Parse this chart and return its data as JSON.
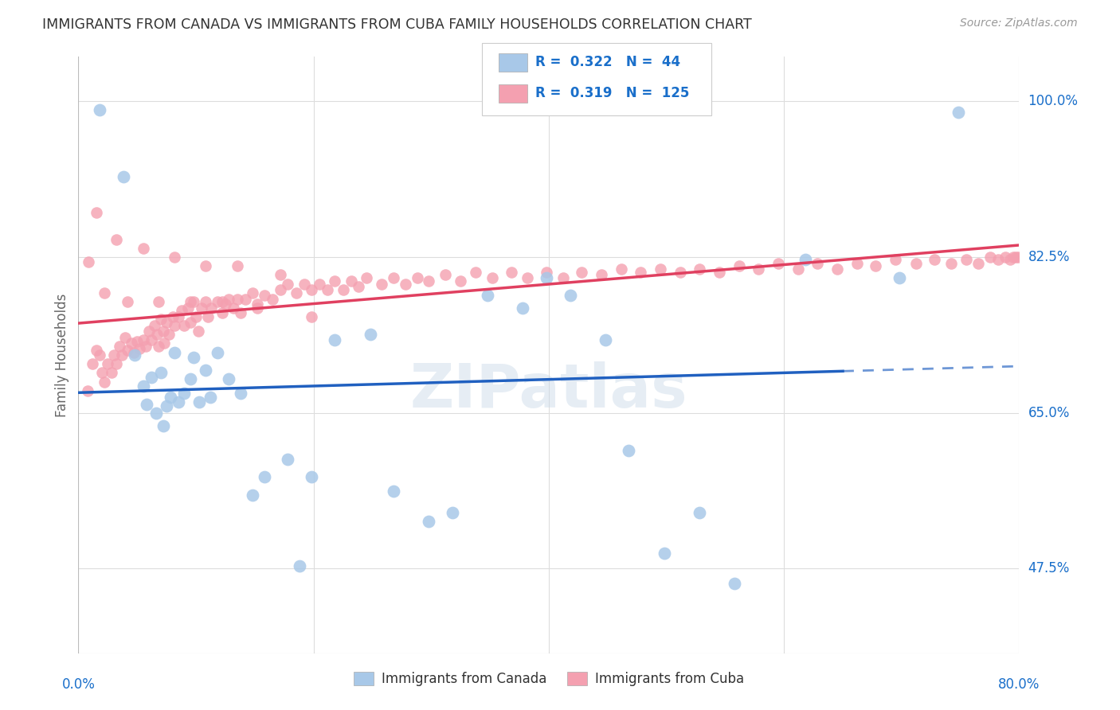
{
  "title": "IMMIGRANTS FROM CANADA VS IMMIGRANTS FROM CUBA FAMILY HOUSEHOLDS CORRELATION CHART",
  "source": "Source: ZipAtlas.com",
  "ylabel": "Family Households",
  "ytick_values": [
    1.0,
    0.825,
    0.65,
    0.475
  ],
  "ytick_labels": [
    "100.0%",
    "82.5%",
    "65.0%",
    "47.5%"
  ],
  "xtick_labels": [
    "0.0%",
    "80.0%"
  ],
  "xlim": [
    0.0,
    0.8
  ],
  "ylim": [
    0.38,
    1.05
  ],
  "canada_N": 44,
  "cuba_N": 125,
  "canada_color": "#a8c8e8",
  "cuba_color": "#f4a0b0",
  "canada_line_color": "#2060c0",
  "cuba_line_color": "#e04060",
  "background_color": "#ffffff",
  "grid_color": "#dddddd",
  "title_color": "#333333",
  "axis_label_color": "#1a6fca",
  "watermark_text": "ZIPatlas",
  "watermark_color": "#c8d8e8",
  "watermark_alpha": 0.45,
  "legend_R_canada": "0.322",
  "legend_N_canada": "44",
  "legend_R_cuba": "0.319",
  "legend_N_cuba": "125",
  "canada_x": [
    0.018,
    0.038,
    0.048,
    0.055,
    0.058,
    0.062,
    0.066,
    0.07,
    0.072,
    0.075,
    0.078,
    0.082,
    0.085,
    0.09,
    0.095,
    0.098,
    0.103,
    0.108,
    0.112,
    0.118,
    0.128,
    0.138,
    0.148,
    0.158,
    0.178,
    0.188,
    0.198,
    0.218,
    0.248,
    0.268,
    0.298,
    0.318,
    0.348,
    0.378,
    0.398,
    0.418,
    0.448,
    0.468,
    0.498,
    0.528,
    0.558,
    0.618,
    0.698,
    0.748
  ],
  "canada_y": [
    0.99,
    0.915,
    0.715,
    0.68,
    0.66,
    0.69,
    0.65,
    0.695,
    0.635,
    0.658,
    0.668,
    0.718,
    0.662,
    0.672,
    0.688,
    0.712,
    0.662,
    0.698,
    0.668,
    0.718,
    0.688,
    0.672,
    0.558,
    0.578,
    0.598,
    0.478,
    0.578,
    0.732,
    0.738,
    0.562,
    0.528,
    0.538,
    0.782,
    0.768,
    0.802,
    0.782,
    0.732,
    0.608,
    0.492,
    0.538,
    0.458,
    0.822,
    0.802,
    0.988
  ],
  "cuba_x": [
    0.008,
    0.012,
    0.015,
    0.018,
    0.02,
    0.022,
    0.025,
    0.028,
    0.03,
    0.032,
    0.035,
    0.037,
    0.04,
    0.042,
    0.045,
    0.047,
    0.05,
    0.052,
    0.055,
    0.057,
    0.06,
    0.062,
    0.065,
    0.067,
    0.068,
    0.07,
    0.072,
    0.073,
    0.075,
    0.077,
    0.08,
    0.082,
    0.085,
    0.088,
    0.09,
    0.093,
    0.095,
    0.098,
    0.1,
    0.102,
    0.105,
    0.108,
    0.11,
    0.113,
    0.118,
    0.122,
    0.125,
    0.128,
    0.132,
    0.135,
    0.138,
    0.142,
    0.148,
    0.152,
    0.158,
    0.165,
    0.172,
    0.178,
    0.185,
    0.192,
    0.198,
    0.205,
    0.212,
    0.218,
    0.225,
    0.232,
    0.238,
    0.245,
    0.258,
    0.268,
    0.278,
    0.288,
    0.298,
    0.312,
    0.325,
    0.338,
    0.352,
    0.368,
    0.382,
    0.398,
    0.412,
    0.428,
    0.445,
    0.462,
    0.478,
    0.495,
    0.512,
    0.528,
    0.545,
    0.562,
    0.578,
    0.595,
    0.612,
    0.628,
    0.645,
    0.662,
    0.678,
    0.695,
    0.712,
    0.728,
    0.742,
    0.755,
    0.765,
    0.775,
    0.782,
    0.788,
    0.792,
    0.795,
    0.797,
    0.799,
    0.0085,
    0.015,
    0.022,
    0.032,
    0.042,
    0.055,
    0.068,
    0.082,
    0.095,
    0.108,
    0.122,
    0.135,
    0.152,
    0.172,
    0.198
  ],
  "cuba_y": [
    0.675,
    0.705,
    0.72,
    0.715,
    0.695,
    0.685,
    0.705,
    0.695,
    0.715,
    0.705,
    0.725,
    0.715,
    0.735,
    0.72,
    0.728,
    0.718,
    0.73,
    0.722,
    0.732,
    0.725,
    0.742,
    0.732,
    0.748,
    0.738,
    0.725,
    0.755,
    0.742,
    0.728,
    0.752,
    0.738,
    0.758,
    0.748,
    0.758,
    0.765,
    0.748,
    0.768,
    0.752,
    0.775,
    0.758,
    0.742,
    0.768,
    0.775,
    0.758,
    0.768,
    0.775,
    0.762,
    0.772,
    0.778,
    0.768,
    0.778,
    0.762,
    0.778,
    0.785,
    0.772,
    0.782,
    0.778,
    0.788,
    0.795,
    0.785,
    0.795,
    0.788,
    0.795,
    0.788,
    0.798,
    0.788,
    0.798,
    0.792,
    0.802,
    0.795,
    0.802,
    0.795,
    0.802,
    0.798,
    0.805,
    0.798,
    0.808,
    0.802,
    0.808,
    0.802,
    0.808,
    0.802,
    0.808,
    0.805,
    0.812,
    0.808,
    0.812,
    0.808,
    0.812,
    0.808,
    0.815,
    0.812,
    0.818,
    0.812,
    0.818,
    0.812,
    0.818,
    0.815,
    0.822,
    0.818,
    0.822,
    0.818,
    0.822,
    0.818,
    0.825,
    0.822,
    0.825,
    0.822,
    0.825,
    0.825,
    0.825,
    0.82,
    0.875,
    0.785,
    0.845,
    0.775,
    0.835,
    0.775,
    0.825,
    0.775,
    0.815,
    0.775,
    0.815,
    0.768,
    0.805,
    0.758
  ]
}
